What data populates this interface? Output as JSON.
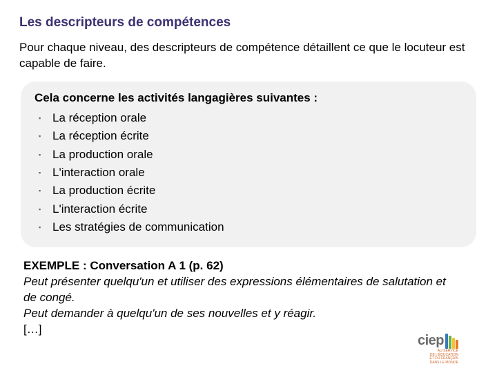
{
  "title": "Les descripteurs de compétences",
  "intro": "Pour chaque niveau, des descripteurs de compétence détaillent ce que le locuteur est capable de faire.",
  "panel": {
    "heading": "Cela concerne les activités langagières suivantes :",
    "items": [
      "La réception orale",
      "La réception écrite",
      "La production orale",
      "L'interaction orale",
      "La production écrite",
      "L'interaction écrite",
      "Les stratégies de communication"
    ]
  },
  "example": {
    "heading": "EXEMPLE : Conversation A 1 (p. 62)",
    "lines": [
      "Peut présenter quelqu'un et utiliser des expressions élémentaires de salutation et de congé.",
      "Peut demander à quelqu'un de ses nouvelles et y réagir."
    ],
    "ellipsis": "[…]"
  },
  "logo": {
    "text": "ciep",
    "stripe_colors": [
      "#3b7ab8",
      "#66b245",
      "#f4c430",
      "#e8792b"
    ],
    "sub_lines": [
      "AU SERVICE",
      "DE L'ÉDUCATION",
      "ET DU FRANÇAIS",
      "DANS LE MONDE"
    ],
    "sub_color": "#d46a2e",
    "text_color": "#6b6b6b"
  },
  "colors": {
    "title": "#3d3170",
    "body_text": "#000000",
    "panel_bg": "#f1f1f1",
    "page_bg": "#ffffff",
    "bullet": "#606060"
  },
  "typography": {
    "title_fontsize": 19,
    "body_fontsize": 17,
    "title_weight": "bold",
    "panel_heading_weight": "bold"
  }
}
